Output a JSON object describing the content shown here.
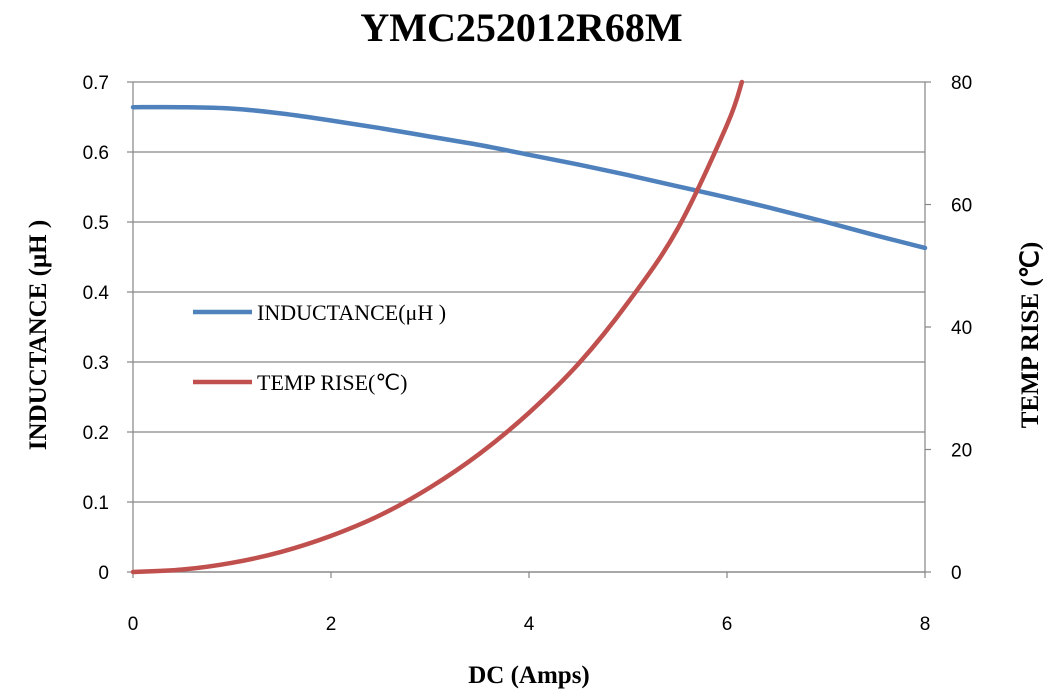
{
  "chart_data": {
    "type": "line",
    "title": "YMC252012R68M",
    "xlabel": "DC (Amps)",
    "ylabel": "INDUCTANCE (μH )",
    "y2label": "TEMP RISE (℃)",
    "xlim": [
      0,
      8
    ],
    "ylim": [
      0,
      0.7
    ],
    "y2lim": [
      0,
      80
    ],
    "x_ticks": [
      "0",
      "2",
      "4",
      "6",
      "8"
    ],
    "y_ticks": [
      "0",
      "0.1",
      "0.2",
      "0.3",
      "0.4",
      "0.5",
      "0.6",
      "0.7"
    ],
    "y2_ticks": [
      "0",
      "20",
      "40",
      "60",
      "80"
    ],
    "grid": true,
    "legend": "center-left",
    "series": [
      {
        "name": "INDUCTANCE(μH )",
        "axis": "left",
        "color": "#4f81bd",
        "x": [
          0,
          0.5,
          1,
          1.5,
          2,
          2.5,
          3,
          3.5,
          4,
          4.5,
          5,
          5.5,
          6,
          6.5,
          7,
          7.5,
          8
        ],
        "y": [
          0.664,
          0.664,
          0.662,
          0.655,
          0.645,
          0.634,
          0.622,
          0.61,
          0.596,
          0.582,
          0.567,
          0.551,
          0.535,
          0.518,
          0.5,
          0.481,
          0.463
        ]
      },
      {
        "name": "TEMP RISE(℃)",
        "axis": "right",
        "color": "#c0504d",
        "x": [
          0,
          0.5,
          1,
          1.5,
          2,
          2.5,
          3,
          3.5,
          4,
          4.5,
          5,
          5.5,
          6,
          6.15
        ],
        "y": [
          0,
          0.4,
          1.5,
          3.3,
          5.9,
          9.3,
          13.8,
          19.3,
          26,
          34,
          44,
          56,
          73,
          80
        ]
      }
    ]
  }
}
